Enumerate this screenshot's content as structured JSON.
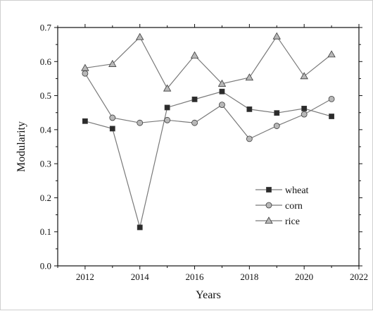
{
  "chart_data": {
    "type": "line",
    "title": "",
    "xlabel": "Years",
    "ylabel": "Modularity",
    "xlim": [
      2011,
      2022
    ],
    "ylim": [
      0.0,
      0.7
    ],
    "x_ticks": [
      2012,
      2014,
      2016,
      2018,
      2020,
      2022
    ],
    "y_ticks": [
      0.0,
      0.1,
      0.2,
      0.3,
      0.4,
      0.5,
      0.6,
      0.7
    ],
    "x_tick_labels": [
      "2012",
      "2014",
      "2016",
      "2018",
      "2020",
      "2022"
    ],
    "y_tick_labels": [
      "0.0",
      "0.1",
      "0.2",
      "0.3",
      "0.4",
      "0.5",
      "0.6",
      "0.7"
    ],
    "x": [
      2012,
      2013,
      2014,
      2015,
      2016,
      2017,
      2018,
      2019,
      2020,
      2021
    ],
    "series": [
      {
        "name": "wheat",
        "marker": "square",
        "values": [
          0.425,
          0.403,
          0.113,
          0.465,
          0.489,
          0.512,
          0.46,
          0.449,
          0.462,
          0.439
        ]
      },
      {
        "name": "corn",
        "marker": "circle",
        "values": [
          0.565,
          0.435,
          0.42,
          0.428,
          0.42,
          0.473,
          0.373,
          0.411,
          0.445,
          0.49
        ]
      },
      {
        "name": "rice",
        "marker": "triangle",
        "values": [
          0.581,
          0.593,
          0.672,
          0.521,
          0.618,
          0.535,
          0.553,
          0.674,
          0.557,
          0.621
        ]
      }
    ],
    "grid": false,
    "legend_position": "lower-right",
    "colors": {
      "line": "#7a7a7a",
      "marker_fill": "#b8b8b8",
      "marker_fill_dark": "#2b2b2b",
      "axis": "#111111"
    }
  }
}
